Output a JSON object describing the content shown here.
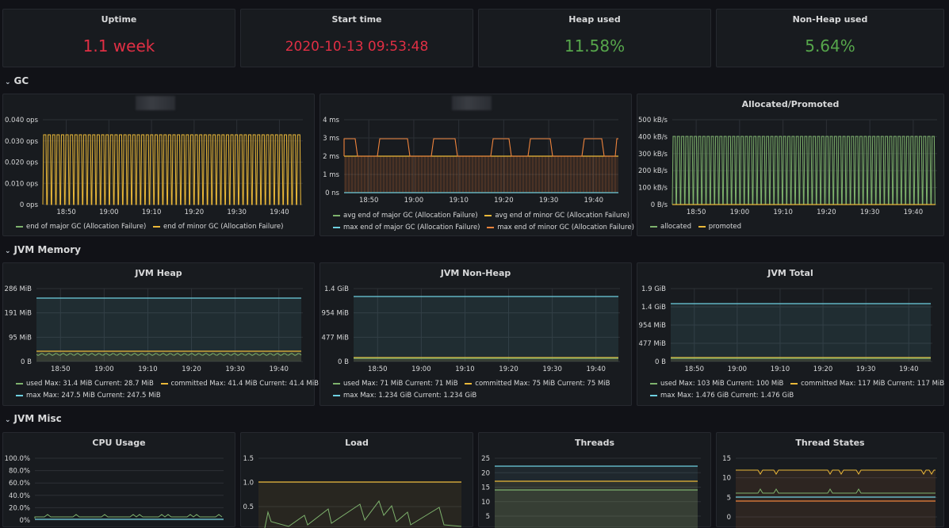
{
  "stats": [
    {
      "title": "Uptime",
      "value": "1.1 week",
      "color": "#e02f44"
    },
    {
      "title": "Start time",
      "value": "2020-10-13 09:53:48",
      "color": "#e02f44"
    },
    {
      "title": "Heap used",
      "value": "11.58%",
      "color": "#56a64b"
    },
    {
      "title": "Non-Heap used",
      "value": "5.64%",
      "color": "#56a64b"
    }
  ],
  "rows": {
    "gc": "GC",
    "memory": "JVM Memory",
    "misc": "JVM Misc"
  },
  "time_ticks": [
    "18:50",
    "19:00",
    "19:10",
    "19:20",
    "19:30",
    "19:40"
  ],
  "panels": {
    "gc_count": {
      "title": "",
      "yticks": [
        "0.040 ops",
        "0.030 ops",
        "0.020 ops",
        "0.010 ops",
        "0 ops"
      ],
      "legend": [
        {
          "color": "#7eb26d",
          "text": "end of major GC (Allocation Failure)"
        },
        {
          "color": "#eab839",
          "text": "end of minor GC (Allocation Failure)"
        }
      ]
    },
    "gc_time": {
      "title": "",
      "yticks": [
        "4 ms",
        "3 ms",
        "2 ms",
        "1 ms",
        "0 ns"
      ],
      "legend1": [
        {
          "color": "#7eb26d",
          "text": "avg end of major GC (Allocation Failure)"
        },
        {
          "color": "#eab839",
          "text": "avg end of minor GC (Allocation Failure)"
        }
      ],
      "legend2": [
        {
          "color": "#6ed0e0",
          "text": "max end of major GC (Allocation Failure)"
        },
        {
          "color": "#ef843c",
          "text": "max end of minor GC (Allocation Failure)"
        }
      ]
    },
    "alloc": {
      "title": "Allocated/Promoted",
      "yticks": [
        "500 kB/s",
        "400 kB/s",
        "300 kB/s",
        "200 kB/s",
        "100 kB/s",
        "0 B/s"
      ],
      "legend": [
        {
          "color": "#7eb26d",
          "text": "allocated"
        },
        {
          "color": "#eab839",
          "text": "promoted"
        }
      ]
    },
    "heap": {
      "title": "JVM Heap",
      "yticks": [
        "286 MiB",
        "191 MiB",
        "95 MiB",
        "0 B"
      ],
      "legend1": [
        {
          "color": "#7eb26d",
          "text": "used  Max: 31.4 MiB  Current: 28.7 MiB"
        },
        {
          "color": "#eab839",
          "text": "committed  Max: 41.4 MiB  Current: 41.4 MiB"
        }
      ],
      "legend2": [
        {
          "color": "#6ed0e0",
          "text": "max  Max: 247.5 MiB  Current: 247.5 MiB"
        }
      ]
    },
    "nonheap": {
      "title": "JVM Non-Heap",
      "yticks": [
        "1.4 GiB",
        "954 MiB",
        "477 MiB",
        "0 B"
      ],
      "legend1": [
        {
          "color": "#7eb26d",
          "text": "used  Max: 71 MiB  Current: 71 MiB"
        },
        {
          "color": "#eab839",
          "text": "committed  Max: 75 MiB  Current: 75 MiB"
        }
      ],
      "legend2": [
        {
          "color": "#6ed0e0",
          "text": "max  Max: 1.234 GiB  Current: 1.234 GiB"
        }
      ]
    },
    "total": {
      "title": "JVM Total",
      "yticks": [
        "1.9 GiB",
        "1.4 GiB",
        "954 MiB",
        "477 MiB",
        "0 B"
      ],
      "legend1": [
        {
          "color": "#7eb26d",
          "text": "used  Max: 103 MiB  Current: 100 MiB"
        },
        {
          "color": "#eab839",
          "text": "committed  Max: 117 MiB  Current: 117 MiB"
        }
      ],
      "legend2": [
        {
          "color": "#6ed0e0",
          "text": "max  Max: 1.476 GiB  Current: 1.476 GiB"
        }
      ]
    },
    "cpu": {
      "title": "CPU Usage",
      "yticks": [
        "100.0%",
        "80.0%",
        "60.0%",
        "40.0%",
        "20.0%",
        "0%"
      ]
    },
    "load": {
      "title": "Load",
      "yticks": [
        "1.5",
        "1.0",
        "0.5"
      ]
    },
    "threads": {
      "title": "Threads",
      "yticks": [
        "25",
        "20",
        "15",
        "10",
        "5"
      ]
    },
    "thread_states": {
      "title": "Thread States",
      "yticks": [
        "15",
        "10",
        "5",
        "0"
      ]
    }
  }
}
